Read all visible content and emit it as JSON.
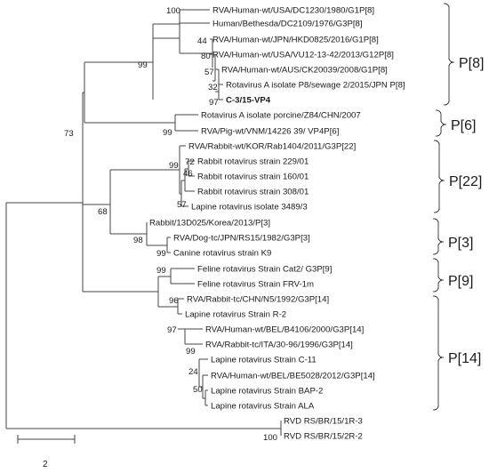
{
  "tree": {
    "taxa": [
      {
        "key": "dc1230",
        "label": "RVA/Human-wt/USA/DC1230/1980/G1P[8]"
      },
      {
        "key": "dc2109",
        "label": "Human/Bethesda/DC2109/1976/G3P[8]"
      },
      {
        "key": "hkd0825",
        "label": "RVA/Human-wt/JPN/HKD0825/2016/G1P[8]"
      },
      {
        "key": "vu12",
        "label": "RVA/Human-wt/USA/VU12-13-42/2013/G12P[8]"
      },
      {
        "key": "ck20039",
        "label": "RVA/Human-wt/AUS/CK20039/2008/G1P[8]"
      },
      {
        "key": "sewage",
        "label": "Rotavirus A isolate P8/sewage 2/2015/JPN P[8]"
      },
      {
        "key": "c3",
        "label": "C-3/15-VP4",
        "bold": true
      },
      {
        "key": "z84",
        "label": "Rotavirus A isolate porcine/Z84/CHN/2007"
      },
      {
        "key": "vnm",
        "label": "RVA/Pig-wt/VNM/14226 39/ VP4P[6]"
      },
      {
        "key": "rab1404",
        "label": "RVA/Rabbit-wt/KOR/Rab1404/2011/G3P[22]"
      },
      {
        "key": "r229",
        "label": "Rabbit rotavirus strain 229/01"
      },
      {
        "key": "r160",
        "label": "Rabbit rotavirus strain 160/01"
      },
      {
        "key": "r308",
        "label": "Rabbit rotavirus strain 308/01"
      },
      {
        "key": "l3489",
        "label": "Lapine rotavirus isolate 3489/3"
      },
      {
        "key": "d025",
        "label": "Rabbit/13D025/Korea/2013/P[3]"
      },
      {
        "key": "rs15",
        "label": "RVA/Dog-tc/JPN/RS15/1982/G3P[3]"
      },
      {
        "key": "k9",
        "label": "Canine rotavirus strain K9"
      },
      {
        "key": "cat2",
        "label": "Feline rotavirus Strain Cat2/ G3P[9]"
      },
      {
        "key": "frv1m",
        "label": "Feline rotavirus Strain FRV-1m"
      },
      {
        "key": "n5",
        "label": "RVA/Rabbit-tc/CHN/N5/1992/G3P[14]"
      },
      {
        "key": "r2",
        "label": "Lapine rotavirus Strain R-2"
      },
      {
        "key": "b4106",
        "label": "RVA/Human-wt/BEL/B4106/2000/G3P[14]"
      },
      {
        "key": "ita30",
        "label": "RVA/Rabbit-tc/ITA/30-96/1996/G3P[14]"
      },
      {
        "key": "c11",
        "label": "Lapine rotavirus Strain C-11"
      },
      {
        "key": "be5028",
        "label": "RVA/Human-wt/BEL/BE5028/2012/G3P[14]"
      },
      {
        "key": "bap2",
        "label": "Lapine rotavirus Strain BAP-2"
      },
      {
        "key": "ala",
        "label": "Lapine rotavirus Strain ALA"
      },
      {
        "key": "rvd1r3",
        "label": "RVD RS/BR/15/1R-3"
      },
      {
        "key": "rvd2r2",
        "label": "RVD RS/BR/15/2R-2"
      }
    ],
    "bootstrap": [
      {
        "key": "n_dc",
        "value": "100"
      },
      {
        "key": "n_h",
        "value": "44"
      },
      {
        "key": "n_vu",
        "value": "80"
      },
      {
        "key": "n_ck",
        "value": "57"
      },
      {
        "key": "n_se",
        "value": "32"
      },
      {
        "key": "n_c3",
        "value": "97"
      },
      {
        "key": "n_p8",
        "value": "99"
      },
      {
        "key": "n_p6",
        "value": "99"
      },
      {
        "key": "n_up",
        "value": "73"
      },
      {
        "key": "n_r229",
        "value": "72"
      },
      {
        "key": "n_r160",
        "value": "46"
      },
      {
        "key": "n_rab",
        "value": "99"
      },
      {
        "key": "n_l3489",
        "value": "57"
      },
      {
        "key": "n_mid",
        "value": "68"
      },
      {
        "key": "n_p3",
        "value": "98"
      },
      {
        "key": "n_k9",
        "value": "99"
      },
      {
        "key": "n_p9",
        "value": "99"
      },
      {
        "key": "n_n5",
        "value": "96"
      },
      {
        "key": "n_b41",
        "value": "97"
      },
      {
        "key": "n_c11",
        "value": "99"
      },
      {
        "key": "n_be",
        "value": "24"
      },
      {
        "key": "n_bap",
        "value": "50"
      },
      {
        "key": "n_rvd",
        "value": "100"
      }
    ],
    "groups": [
      {
        "key": "g_p8",
        "label": "P[8]"
      },
      {
        "key": "g_p6",
        "label": "P[6]"
      },
      {
        "key": "g_p22",
        "label": "P[22]"
      },
      {
        "key": "g_p3",
        "label": "P[3]"
      },
      {
        "key": "g_p9",
        "label": "P[9]"
      },
      {
        "key": "g_p14",
        "label": "P[14]"
      }
    ],
    "scale_bar_label": "2"
  }
}
